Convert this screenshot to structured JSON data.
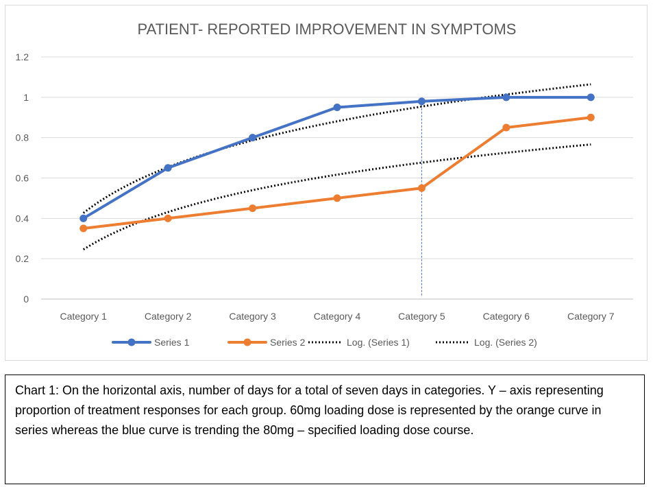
{
  "chart_data": {
    "type": "line",
    "title": "PATIENT- REPORTED IMPROVEMENT IN SYMPTOMS",
    "xlabel": "",
    "ylabel": "",
    "categories": [
      "Category 1",
      "Category 2",
      "Category 3",
      "Category 4",
      "Category 5",
      "Category 6",
      "Category 7"
    ],
    "yticks": [
      "0",
      "0.2",
      "0.4",
      "0.6",
      "0.8",
      "1",
      "1.2"
    ],
    "ylim": [
      0,
      1.2
    ],
    "grid": true,
    "legend_position": "bottom",
    "series": [
      {
        "name": "Series 1",
        "color": "#4472c4",
        "values": [
          0.4,
          0.65,
          0.8,
          0.95,
          0.98,
          1.0,
          1.0
        ]
      },
      {
        "name": "Series 2",
        "color": "#ed7d31",
        "values": [
          0.35,
          0.4,
          0.45,
          0.5,
          0.55,
          0.85,
          0.9
        ]
      }
    ],
    "trendlines": [
      {
        "name": "Log. (Series 1)",
        "type": "logarithmic",
        "of": "Series 1",
        "color": "#000000"
      },
      {
        "name": "Log. (Series 2)",
        "type": "logarithmic",
        "of": "Series 2",
        "color": "#000000"
      }
    ],
    "annotations": [
      {
        "type": "vertical-dashed-line",
        "at_category": "Category 5",
        "color": "#4472c4"
      }
    ]
  },
  "caption": {
    "text": "Chart 1: On the horizontal axis, number of days for a total of seven days in categories. Y – axis representing proportion of treatment responses for each group. 60mg loading dose is represented by the orange curve in series whereas the blue curve is trending the 80mg – specified loading dose course."
  }
}
